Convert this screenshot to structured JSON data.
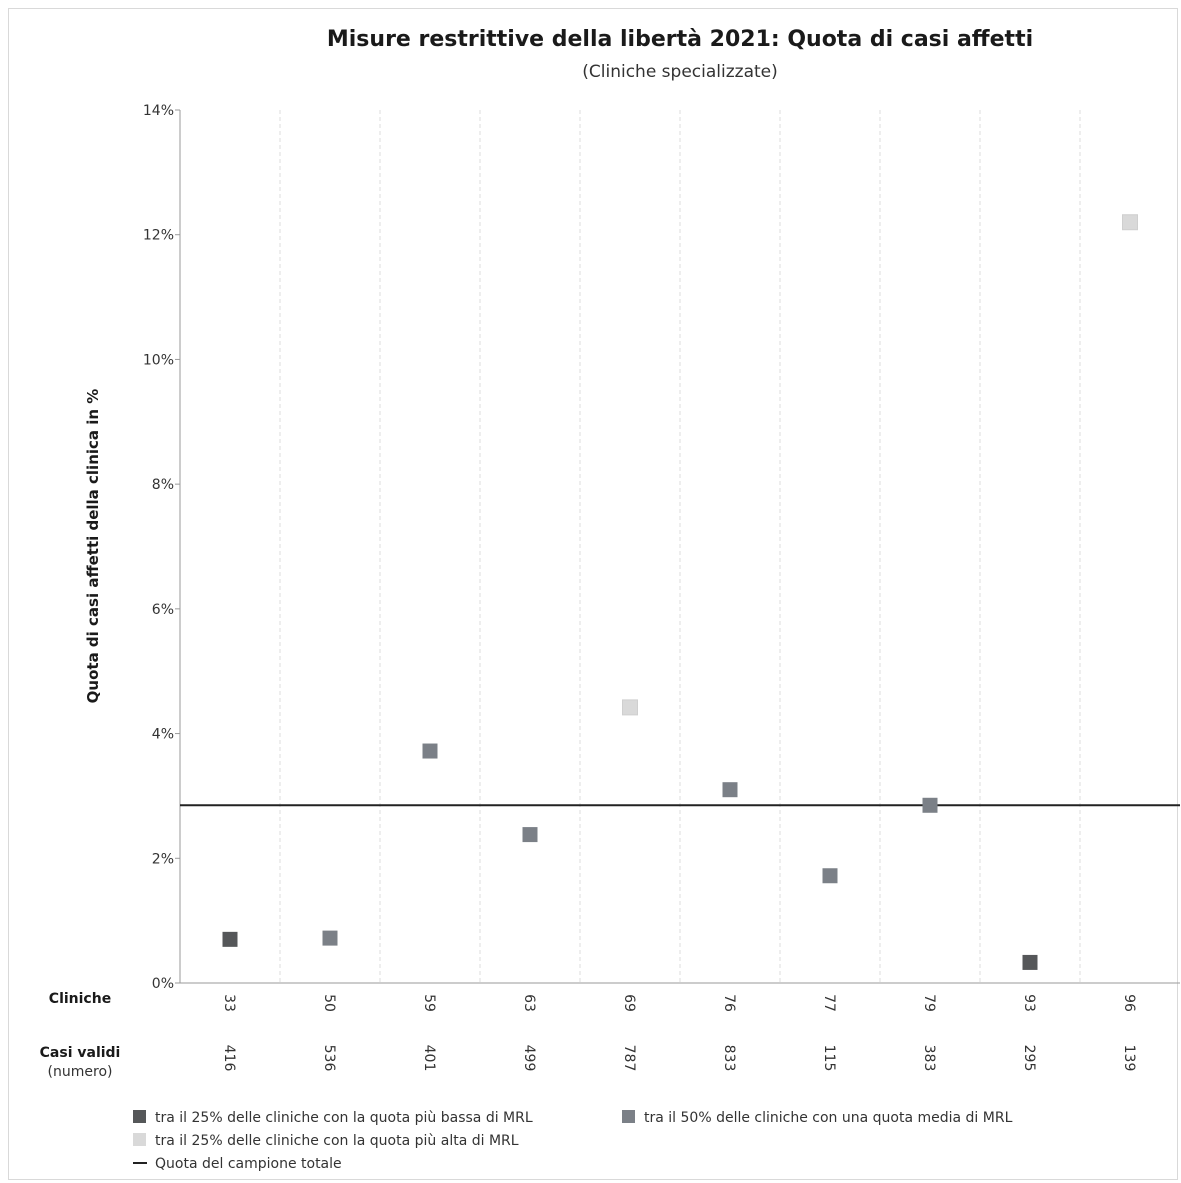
{
  "chart_data": {
    "type": "scatter",
    "title": "Misure restrittive della libertà 2021: Quota di casi affetti",
    "subtitle": "(Cliniche specializzate)",
    "ylabel": "Quota di casi affetti della clinica in %",
    "ylim": [
      0,
      14
    ],
    "yticks": [
      0,
      2,
      4,
      6,
      8,
      10,
      12,
      14
    ],
    "ytick_labels": [
      "0%",
      "2%",
      "4%",
      "6%",
      "8%",
      "10%",
      "12%",
      "14%"
    ],
    "grid": "vertical dashed",
    "row_labels": {
      "cliniche": "Cliniche",
      "casi_validi": "Casi validi",
      "casi_validi_sub": "(numero)"
    },
    "categories": [
      "33",
      "50",
      "59",
      "63",
      "69",
      "76",
      "77",
      "79",
      "93",
      "96"
    ],
    "casi_validi": [
      "416",
      "536",
      "401",
      "499",
      "787",
      "833",
      "115",
      "383",
      "295",
      "139"
    ],
    "values": [
      0.7,
      0.72,
      3.72,
      2.38,
      4.42,
      3.1,
      1.72,
      2.85,
      0.33,
      12.2
    ],
    "groups": [
      "low",
      "mid",
      "mid",
      "mid",
      "high",
      "mid",
      "mid",
      "mid",
      "low",
      "high"
    ],
    "reference_line": {
      "label": "Quota del campione totale",
      "value": 2.85,
      "color": "#222222"
    },
    "group_colors": {
      "low": "#555759",
      "mid": "#7b8087",
      "high": "#d9d9d9"
    },
    "legend": [
      {
        "group": "low",
        "label": "tra il 25% delle cliniche con la quota più bassa di MRL"
      },
      {
        "group": "mid",
        "label": "tra il 50% delle cliniche con una quota media di MRL"
      },
      {
        "group": "high",
        "label": "tra il 25% delle cliniche con la quota più alta di MRL"
      },
      {
        "group": "line",
        "label": "Quota del campione totale"
      }
    ],
    "legend_position": "bottom"
  }
}
